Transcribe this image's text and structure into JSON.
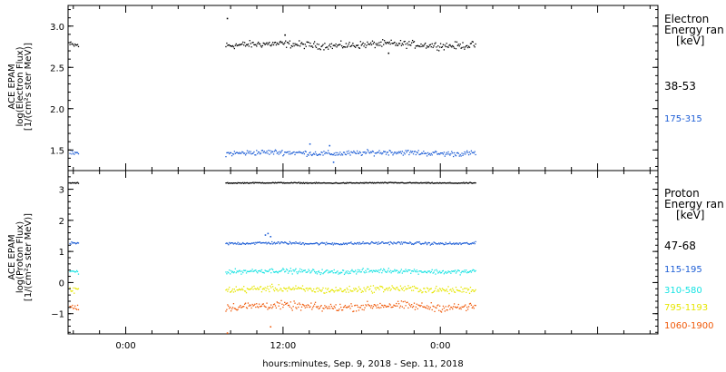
{
  "x_title": "hours:minutes, Sep.  9, 2018 - Sep. 11, 2018",
  "colors": {
    "black": "#000000",
    "blue": "#1f5fd6",
    "cyan": "#17e3e3",
    "yellow": "#e6e600",
    "orange": "#f05a0a"
  },
  "chart_data": [
    {
      "type": "scatter",
      "panel": "electron",
      "ylabel_lines": [
        "ACE EPAM",
        "log(Electron Flux)",
        "[1/(cm²s ster MeV)]"
      ],
      "ylim": [
        1.25,
        3.25
      ],
      "yticks": [
        1.5,
        2.0,
        2.5,
        3.0
      ],
      "ytick_labels": [
        "1.5",
        "2.0",
        "2.5",
        "3.0"
      ],
      "xlim_hours": [
        -4.4,
        40.6
      ],
      "xticks_hours": [
        0,
        12,
        24
      ],
      "xtick_labels": [
        "0:00",
        "12:00",
        "0:00"
      ],
      "legend_title": [
        "Electron",
        "Energy ran"
      ],
      "legend_unit": "[keV]",
      "series": [
        {
          "name": "38-53",
          "color_key": "black",
          "level": 2.78,
          "noise": 0.04,
          "segments": [
            [
              -4.3,
              -3.6
            ],
            [
              7.6,
              26.7
            ]
          ],
          "outliers": [
            [
              7.7,
              3.1
            ],
            [
              12.1,
              2.9
            ],
            [
              20.0,
              2.68
            ]
          ]
        },
        {
          "name": "175-315",
          "color_key": "blue",
          "level": 1.47,
          "noise": 0.03,
          "segments": [
            [
              -4.3,
              -3.6
            ],
            [
              7.6,
              26.7
            ]
          ],
          "outliers": [
            [
              15.5,
              1.56
            ],
            [
              15.8,
              1.36
            ],
            [
              14.0,
              1.58
            ]
          ]
        }
      ]
    },
    {
      "type": "scatter",
      "panel": "proton",
      "ylabel_lines": [
        "ACE EPAM",
        "log(Proton Flux)",
        "[1/(cm²s ster MeV)]"
      ],
      "ylim": [
        -1.65,
        3.6
      ],
      "yticks": [
        -1,
        0,
        1,
        2,
        3
      ],
      "ytick_labels": [
        "−1",
        "0",
        "1",
        "2",
        "3"
      ],
      "xlim_hours": [
        -4.4,
        40.6
      ],
      "xticks_hours": [
        0,
        12,
        24
      ],
      "xtick_labels": [
        "0:00",
        "12:00",
        "0:00"
      ],
      "legend_title": [
        "Proton",
        "Energy ran"
      ],
      "legend_unit": "[keV]",
      "series": [
        {
          "name": "47-68",
          "color_key": "black",
          "level": 3.22,
          "noise": 0.015,
          "segments": [
            [
              -4.3,
              -3.6
            ],
            [
              7.6,
              26.7
            ]
          ],
          "outliers": []
        },
        {
          "name": "115-195",
          "color_key": "blue",
          "level": 1.28,
          "noise": 0.04,
          "segments": [
            [
              -4.3,
              -3.6
            ],
            [
              7.6,
              26.7
            ]
          ],
          "outliers": [
            [
              10.6,
              1.55
            ],
            [
              10.8,
              1.6
            ],
            [
              11.0,
              1.5
            ]
          ]
        },
        {
          "name": "310-580",
          "color_key": "cyan",
          "level": 0.38,
          "noise": 0.07,
          "segments": [
            [
              -4.3,
              -3.6
            ],
            [
              7.6,
              26.7
            ]
          ],
          "outliers": []
        },
        {
          "name": "795-1193",
          "color_key": "yellow",
          "level": -0.2,
          "noise": 0.1,
          "segments": [
            [
              -4.3,
              -3.6
            ],
            [
              7.6,
              26.7
            ]
          ],
          "outliers": []
        },
        {
          "name": "1060-1900",
          "color_key": "orange",
          "level": -0.75,
          "noise": 0.12,
          "segments": [
            [
              -4.3,
              -3.6
            ],
            [
              7.6,
              26.7
            ]
          ],
          "outliers": [
            [
              7.7,
              -1.6
            ],
            [
              11.0,
              -1.4
            ]
          ]
        }
      ]
    }
  ]
}
